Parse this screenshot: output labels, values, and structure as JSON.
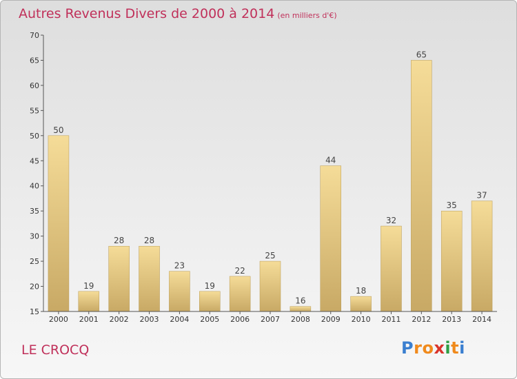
{
  "title": "Autres Revenus Divers de 2000 à 2014",
  "subtitle": "(en milliers d'€)",
  "place": "LE CROCQ",
  "logo": {
    "letters": [
      "P",
      "r",
      "o",
      "x",
      "i",
      "t",
      "i"
    ],
    "colors": [
      "#3a7fd0",
      "#f08a1c",
      "#f08a1c",
      "#d9342b",
      "#2f9e44",
      "#f08a1c",
      "#3a7fd0"
    ]
  },
  "colors": {
    "title": "#c0305a",
    "bar_light": "#f5dc98",
    "bar_dark": "#c8a965",
    "axis": "#555555"
  },
  "chart_data": {
    "type": "bar",
    "categories": [
      "2000",
      "2001",
      "2002",
      "2003",
      "2004",
      "2005",
      "2006",
      "2007",
      "2008",
      "2009",
      "2010",
      "2011",
      "2012",
      "2013",
      "2014"
    ],
    "values": [
      50,
      19,
      28,
      28,
      23,
      19,
      22,
      25,
      16,
      44,
      18,
      32,
      65,
      35,
      37
    ],
    "ylim": [
      15,
      70
    ],
    "yticks": [
      15,
      20,
      25,
      30,
      35,
      40,
      45,
      50,
      55,
      60,
      65,
      70
    ],
    "grid": false,
    "data_labels": true
  }
}
